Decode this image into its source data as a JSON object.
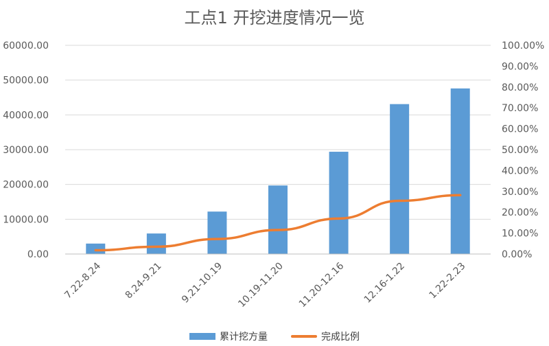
{
  "chart_data": {
    "type": "bar",
    "title": "工点1 开挖进度情况一览",
    "categories": [
      "7.22-8.24",
      "8.24-9.21",
      "9.21-10.19",
      "10.19-11.20",
      "11.20-12.16",
      "12.16-1.22",
      "1.22-2.23"
    ],
    "series": [
      {
        "name": "累计挖方量",
        "type": "bar",
        "axis": "left",
        "values": [
          3000,
          5900,
          12200,
          19700,
          29400,
          43100,
          47600
        ],
        "color": "#5b9bd5"
      },
      {
        "name": "完成比例",
        "type": "line",
        "axis": "right",
        "values": [
          0.018,
          0.035,
          0.072,
          0.115,
          0.17,
          0.255,
          0.282
        ],
        "color": "#ed7d31"
      }
    ],
    "y_left": {
      "ylim": [
        0,
        60000
      ],
      "ticks": [
        "0.00",
        "10000.00",
        "20000.00",
        "30000.00",
        "40000.00",
        "50000.00",
        "60000.00"
      ]
    },
    "y_right": {
      "ylim": [
        0,
        1
      ],
      "ticks": [
        "0.00%",
        "10.00%",
        "20.00%",
        "30.00%",
        "40.00%",
        "50.00%",
        "60.00%",
        "70.00%",
        "80.00%",
        "90.00%",
        "100.00%"
      ]
    },
    "xlabel": "",
    "ylabel": "",
    "grid": true,
    "legend_position": "bottom"
  }
}
